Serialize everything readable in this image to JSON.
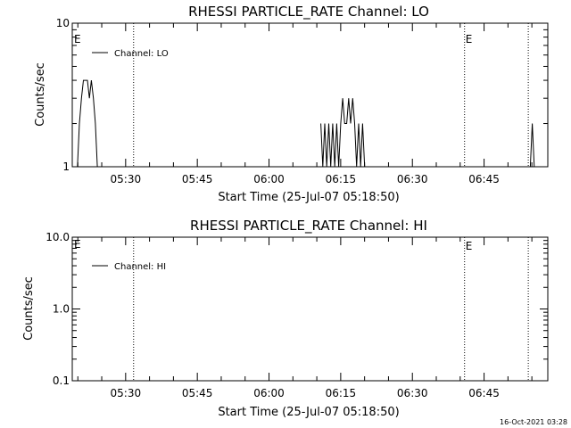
{
  "footer": {
    "timestamp": "16-Oct-2021 03:28"
  },
  "chart_data": [
    {
      "type": "line",
      "title": "RHESSI PARTICLE_RATE Channel: LO",
      "xlabel": "Start Time (25-Jul-07 05:18:50)",
      "ylabel": "Counts/sec",
      "yscale": "log",
      "ylim": [
        1,
        10
      ],
      "y_ticks": [
        "1",
        "10"
      ],
      "x_ticks": [
        "05:30",
        "05:45",
        "06:00",
        "06:15",
        "06:30",
        "06:45"
      ],
      "xlim": [
        "05:18:50",
        "06:58:20"
      ],
      "legend": {
        "placement": "top-left"
      },
      "series": [
        {
          "name": "Channel: LO",
          "x": [
            "05:19:55",
            "05:20:20",
            "05:20:45",
            "05:21:10",
            "05:21:35",
            "05:22:00",
            "05:22:25",
            "05:22:50",
            "05:23:15",
            "05:23:40",
            "05:24:05",
            "05:24:30",
            "06:10:50",
            "06:11:15",
            "06:11:40",
            "06:12:05",
            "06:12:30",
            "06:12:55",
            "06:13:20",
            "06:13:45",
            "06:14:10",
            "06:14:35",
            "06:15:00",
            "06:15:25",
            "06:15:50",
            "06:16:15",
            "06:16:40",
            "06:17:05",
            "06:17:30",
            "06:17:55",
            "06:18:20",
            "06:18:45",
            "06:19:10",
            "06:19:35",
            "06:20:00",
            "06:20:25",
            "06:54:40",
            "06:55:05",
            "06:55:30"
          ],
          "values": [
            1,
            2,
            3,
            4,
            4,
            4,
            3,
            4,
            3,
            2,
            1,
            1,
            2,
            1,
            2,
            1,
            2,
            1,
            2,
            1,
            2,
            1,
            2,
            3,
            2,
            2,
            3,
            2,
            3,
            2,
            1,
            2,
            1,
            2,
            1,
            1,
            1,
            2,
            1
          ]
        }
      ],
      "vlines": [
        {
          "x": "05:31:40",
          "label": ""
        },
        {
          "x": "06:40:55",
          "label": "E"
        },
        {
          "x": "06:54:15",
          "label": ""
        }
      ],
      "marker_left": "E"
    },
    {
      "type": "line",
      "title": "RHESSI PARTICLE_RATE Channel: HI",
      "xlabel": "Start Time (25-Jul-07 05:18:50)",
      "ylabel": "Counts/sec",
      "yscale": "log",
      "ylim": [
        0.1,
        10
      ],
      "y_ticks": [
        "0.1",
        "1.0",
        "10.0"
      ],
      "x_ticks": [
        "05:30",
        "05:45",
        "06:00",
        "06:15",
        "06:30",
        "06:45"
      ],
      "xlim": [
        "05:18:50",
        "06:58:20"
      ],
      "legend": {
        "placement": "top-left"
      },
      "series": [
        {
          "name": "Channel: HI",
          "x": [],
          "values": []
        }
      ],
      "vlines": [
        {
          "x": "05:31:40",
          "label": ""
        },
        {
          "x": "06:40:55",
          "label": "E"
        },
        {
          "x": "06:54:15",
          "label": ""
        }
      ],
      "marker_left": "E"
    }
  ]
}
